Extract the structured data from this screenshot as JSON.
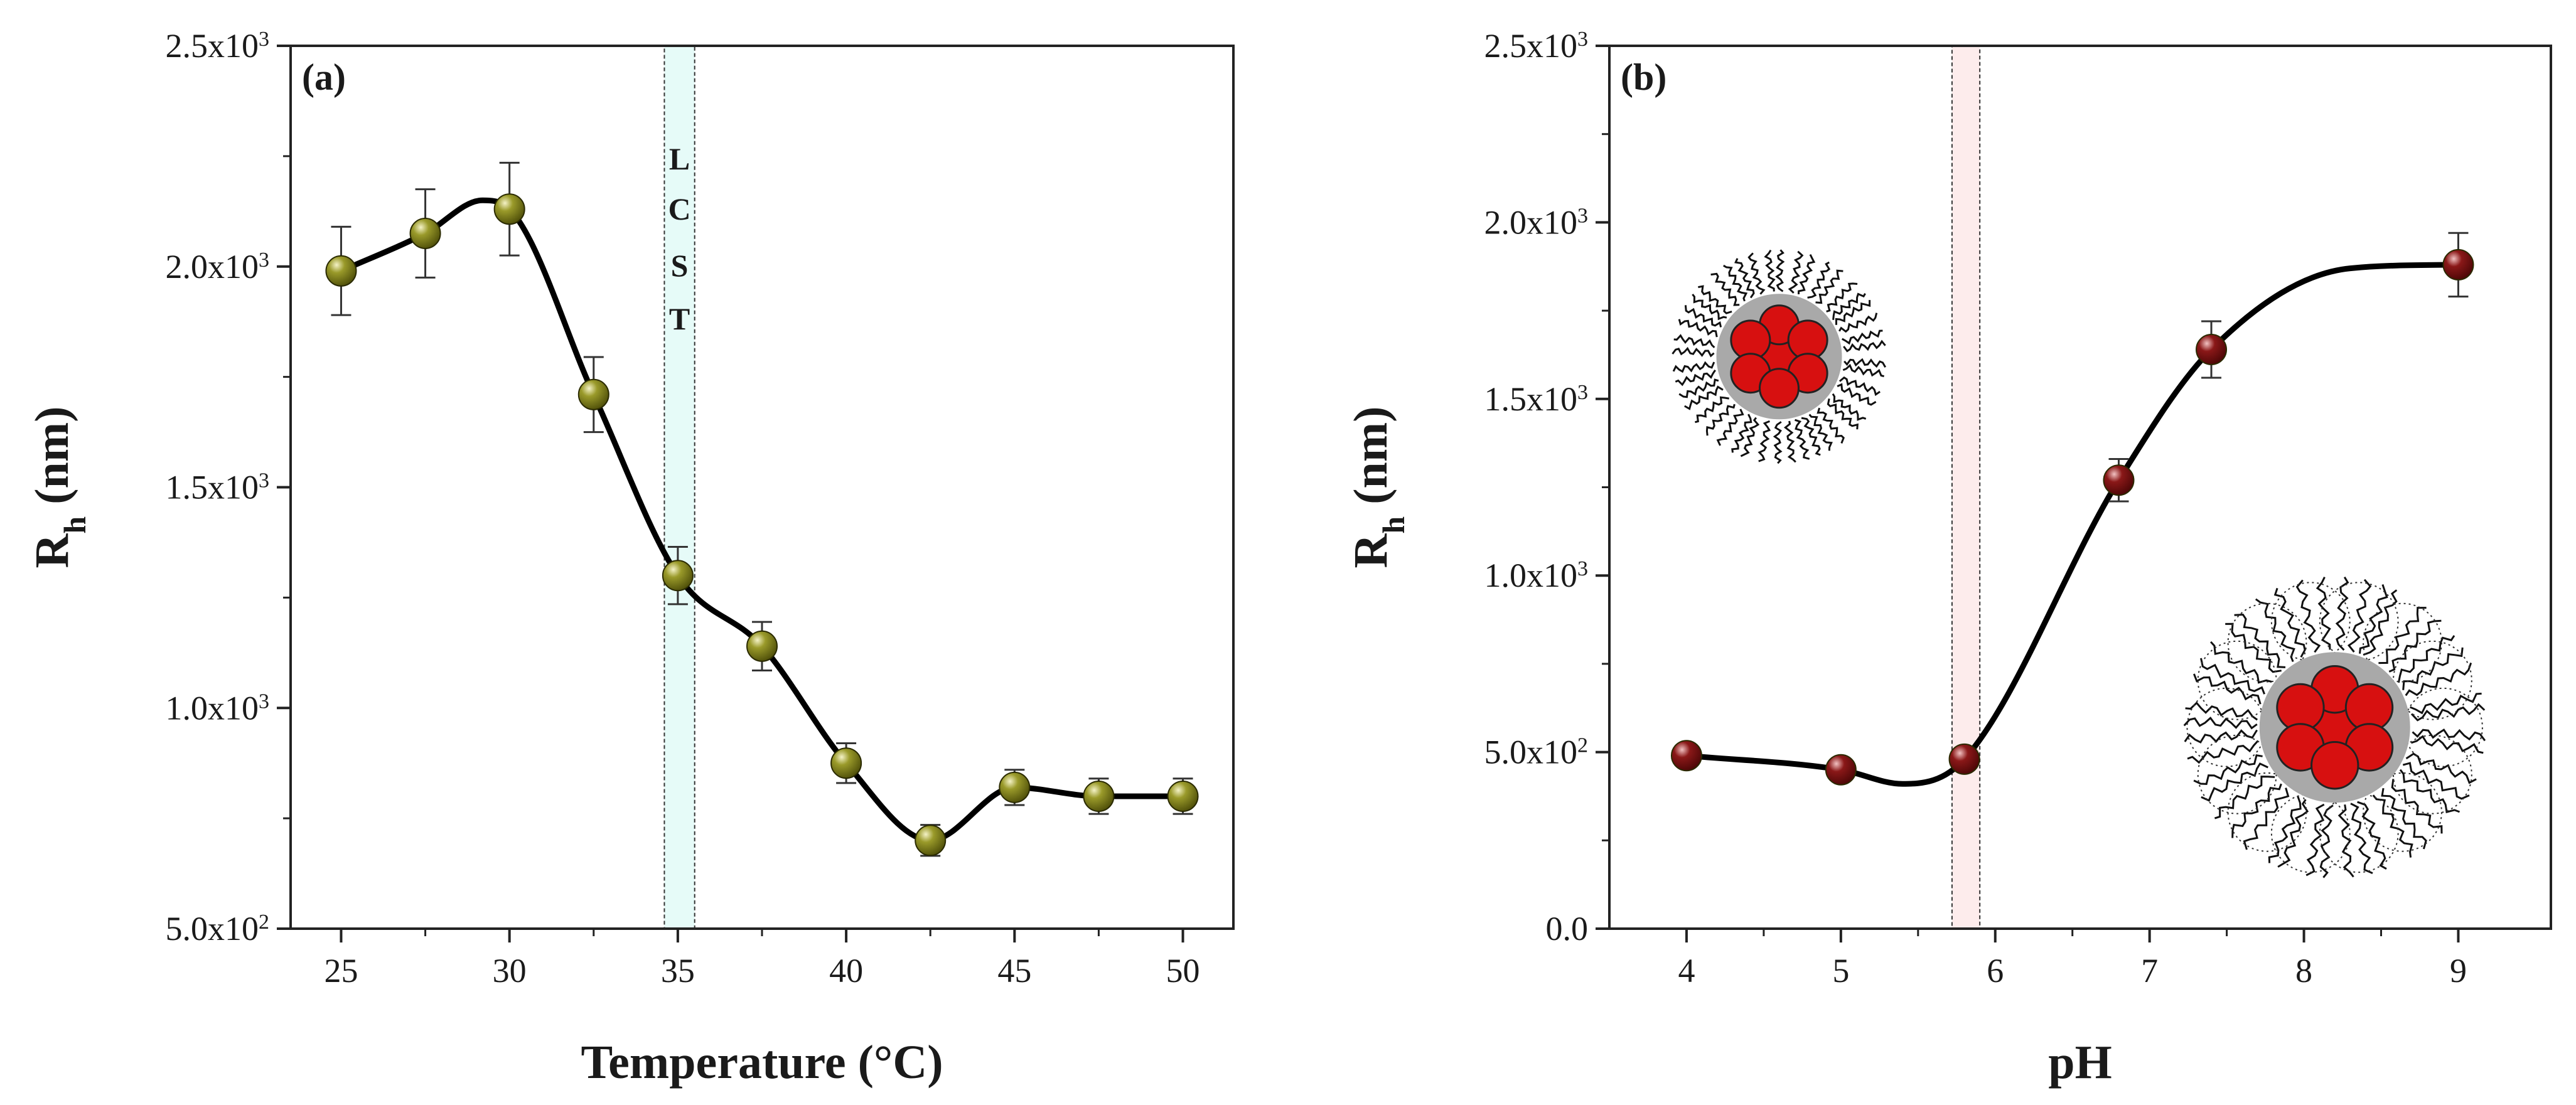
{
  "chart_data": [
    {
      "type": "line",
      "panel_label": "(a)",
      "xlabel": "Temperature (°C)",
      "ylabel_main": "R",
      "ylabel_sub": "h",
      "ylabel_unit": " (nm)",
      "xlim": [
        23.5,
        51.5
      ],
      "ylim": [
        500,
        2500
      ],
      "xticks": [
        25,
        30,
        35,
        40,
        45,
        50
      ],
      "xtick_labels": [
        "25",
        "30",
        "35",
        "40",
        "45",
        "50"
      ],
      "yticks": [
        500,
        1000,
        1500,
        2000,
        2500
      ],
      "ytick_mantissas": [
        "5.0x10",
        "1.0x10",
        "1.5x10",
        "2.0x10",
        "2.5x10"
      ],
      "ytick_exponents": [
        "2",
        "3",
        "3",
        "3",
        "3"
      ],
      "annotation_letters": [
        "L",
        "C",
        "S",
        "T"
      ],
      "band": {
        "label": "LCST",
        "x_from": 34.6,
        "x_to": 35.5,
        "color": "#e6fbf8"
      },
      "marker_color": "#6e6e12",
      "series": [
        {
          "name": "Rh vs Temperature",
          "x": [
            25,
            27.5,
            30,
            32.5,
            35,
            37.5,
            40,
            42.5,
            45,
            47.5,
            50
          ],
          "y": [
            1990,
            2075,
            2130,
            1710,
            1300,
            1140,
            875,
            700,
            820,
            800,
            800
          ],
          "error": [
            100,
            100,
            105,
            85,
            65,
            55,
            45,
            35,
            40,
            40,
            40
          ]
        }
      ]
    },
    {
      "type": "line",
      "panel_label": "(b)",
      "xlabel": "pH",
      "ylabel_main": "R",
      "ylabel_sub": "h",
      "ylabel_unit": " (nm)",
      "xlim": [
        3.5,
        9.6
      ],
      "ylim": [
        0,
        2500
      ],
      "xticks": [
        4,
        5,
        6,
        7,
        8,
        9
      ],
      "xtick_labels": [
        "4",
        "5",
        "6",
        "7",
        "8",
        "9"
      ],
      "yticks": [
        0,
        500,
        1000,
        1500,
        2000,
        2500
      ],
      "ytick_mantissas": [
        "0.0",
        "5.0x10",
        "1.0x10",
        "1.5x10",
        "2.0x10",
        "2.5x10"
      ],
      "ytick_exponents": [
        "",
        "2",
        "3",
        "3",
        "3",
        "3"
      ],
      "band": {
        "label": "",
        "x_from": 5.72,
        "x_to": 5.9,
        "color": "#fdecec"
      },
      "marker_color": "#7a1212",
      "series": [
        {
          "name": "Rh vs pH",
          "x": [
            4,
            5,
            5.8,
            6.8,
            7.4,
            9
          ],
          "y": [
            490,
            450,
            480,
            1270,
            1640,
            1880
          ],
          "error": [
            20,
            20,
            25,
            60,
            80,
            90
          ]
        }
      ],
      "insets": [
        {
          "name": "collapsed-micelle-illustration",
          "state": "collapsed",
          "at_x": 4.6,
          "at_y": 1620
        },
        {
          "name": "swollen-micelle-illustration",
          "state": "swollen",
          "at_x": 8.2,
          "at_y": 570
        }
      ]
    }
  ]
}
